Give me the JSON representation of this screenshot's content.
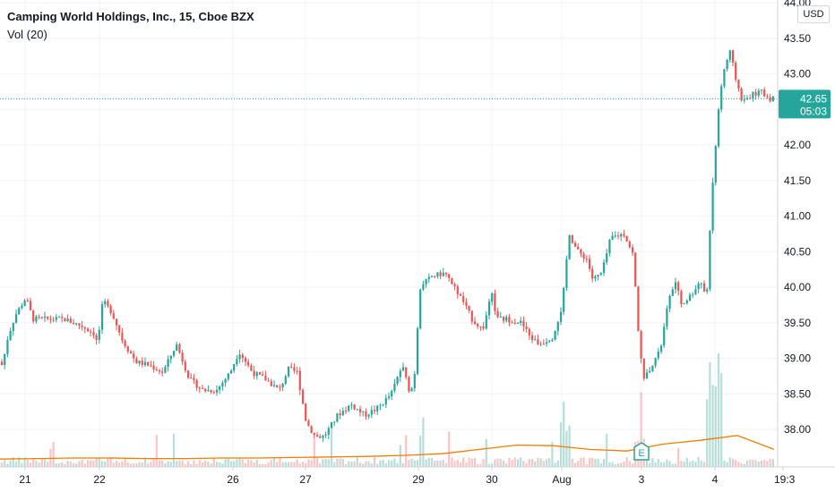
{
  "legend": {
    "symbol": "Camping World Holdings, Inc., 15, Cboe BZX",
    "indicator": "Vol (20)"
  },
  "currency": "USD",
  "last_price": {
    "value": "42.65",
    "countdown": "05:03"
  },
  "earnings_marker": {
    "label": "E"
  },
  "colors": {
    "up": "#26a69a",
    "down": "#ef5350",
    "price_tag": "#26a69a",
    "volume_ma": "#f57c00",
    "grid": "#f0f3fa",
    "axis_line": "#d1d4dc"
  },
  "chart_data": {
    "type": "candlestick",
    "ylim": [
      37.6,
      44.05
    ],
    "yticks": [
      "38.00",
      "38.50",
      "39.00",
      "39.50",
      "40.00",
      "40.50",
      "41.00",
      "41.50",
      "42.00",
      "42.50",
      "43.00",
      "43.50",
      "44.00"
    ],
    "x_labels": [
      "21",
      "22",
      "26",
      "27",
      "29",
      "30",
      "Aug",
      "3",
      "4",
      "19:3"
    ],
    "close_path": [
      [
        0,
        38.95
      ],
      [
        6,
        38.9
      ],
      [
        12,
        39.3
      ],
      [
        20,
        39.6
      ],
      [
        32,
        39.85
      ],
      [
        40,
        39.55
      ],
      [
        55,
        39.55
      ],
      [
        75,
        39.55
      ],
      [
        95,
        39.45
      ],
      [
        108,
        39.35
      ],
      [
        112,
        39.2
      ],
      [
        118,
        39.8
      ],
      [
        128,
        39.65
      ],
      [
        140,
        39.25
      ],
      [
        155,
        38.95
      ],
      [
        170,
        38.9
      ],
      [
        185,
        38.8
      ],
      [
        200,
        39.2
      ],
      [
        215,
        38.7
      ],
      [
        230,
        38.55
      ],
      [
        245,
        38.55
      ],
      [
        260,
        38.8
      ],
      [
        270,
        39.1
      ],
      [
        285,
        38.8
      ],
      [
        300,
        38.7
      ],
      [
        315,
        38.55
      ],
      [
        325,
        38.85
      ],
      [
        335,
        38.8
      ],
      [
        345,
        38.1
      ],
      [
        355,
        37.9
      ],
      [
        365,
        37.9
      ],
      [
        380,
        38.2
      ],
      [
        395,
        38.35
      ],
      [
        410,
        38.2
      ],
      [
        425,
        38.3
      ],
      [
        440,
        38.5
      ],
      [
        452,
        38.9
      ],
      [
        460,
        38.55
      ],
      [
        465,
        38.6
      ],
      [
        472,
        40.0
      ],
      [
        485,
        40.15
      ],
      [
        500,
        40.2
      ],
      [
        510,
        40.0
      ],
      [
        520,
        39.8
      ],
      [
        530,
        39.55
      ],
      [
        542,
        39.4
      ],
      [
        552,
        39.9
      ],
      [
        558,
        39.55
      ],
      [
        570,
        39.55
      ],
      [
        585,
        39.5
      ],
      [
        595,
        39.3
      ],
      [
        605,
        39.2
      ],
      [
        620,
        39.3
      ],
      [
        631,
        39.75
      ],
      [
        638,
        40.75
      ],
      [
        648,
        40.5
      ],
      [
        658,
        40.4
      ],
      [
        665,
        40.1
      ],
      [
        675,
        40.2
      ],
      [
        685,
        40.7
      ],
      [
        700,
        40.75
      ],
      [
        710,
        40.45
      ],
      [
        716,
        39.3
      ],
      [
        722,
        38.7
      ],
      [
        730,
        38.9
      ],
      [
        740,
        39.1
      ],
      [
        748,
        39.7
      ],
      [
        756,
        40.1
      ],
      [
        764,
        39.75
      ],
      [
        775,
        39.9
      ],
      [
        785,
        40.1
      ],
      [
        792,
        39.85
      ],
      [
        797,
        41.2
      ],
      [
        805,
        42.5
      ],
      [
        812,
        43.1
      ],
      [
        818,
        43.3
      ],
      [
        825,
        42.9
      ],
      [
        832,
        42.6
      ],
      [
        842,
        42.7
      ],
      [
        852,
        42.75
      ],
      [
        862,
        42.65
      ]
    ],
    "volume_ma": [
      0.8,
      0.9,
      1.0,
      1.0,
      0.9,
      0.9,
      1.0,
      1.0,
      1.1,
      1.2,
      1.3,
      1.5,
      1.8,
      2.6,
      3.4,
      3.3,
      2.6,
      2.3,
      3.6,
      4.3,
      5.2,
      2.6
    ]
  }
}
